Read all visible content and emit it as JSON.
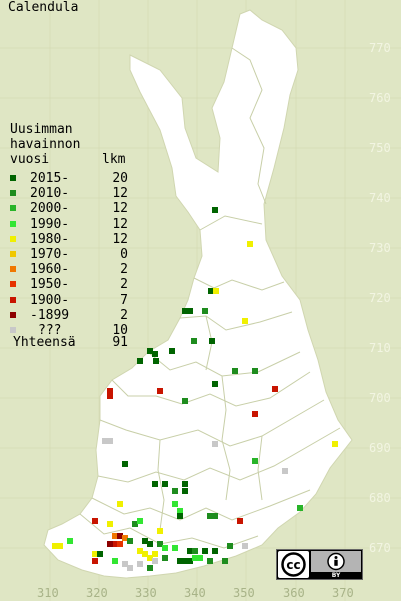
{
  "title": "Calendula",
  "legend": {
    "heading_line1": "Uusimman",
    "heading_line2": "havainnon",
    "heading_col1": "vuosi",
    "heading_col2": "lkm",
    "rows": [
      {
        "label": "2015-",
        "count": "20",
        "color": "#006400"
      },
      {
        "label": "2010-",
        "count": "12",
        "color": "#1e8c1e"
      },
      {
        "label": "2000-",
        "count": "12",
        "color": "#28b428"
      },
      {
        "label": "1990-",
        "count": "12",
        "color": "#32e632"
      },
      {
        "label": "1980-",
        "count": "12",
        "color": "#f0f000"
      },
      {
        "label": "1970-",
        "count": "0",
        "color": "#f0c800"
      },
      {
        "label": "1960-",
        "count": "2",
        "color": "#f07800"
      },
      {
        "label": "1950-",
        "count": "2",
        "color": "#e63200"
      },
      {
        "label": "1900-",
        "count": "7",
        "color": "#c81400"
      },
      {
        "label": "-1899",
        "count": "2",
        "color": "#8c0000"
      },
      {
        "label": "???",
        "count": "10",
        "color": "#c8c8c8"
      }
    ],
    "total_label": "Yhteensä",
    "total_count": "91"
  },
  "grid_y_labels": [
    "770",
    "760",
    "750",
    "740",
    "730",
    "720",
    "710",
    "700",
    "690",
    "680",
    "670"
  ],
  "grid_x_labels": [
    "310",
    "320",
    "330",
    "340",
    "350",
    "360",
    "370"
  ],
  "license": {
    "cc": "cc",
    "by": "BY",
    "badge_label": "Creative Commons BY"
  },
  "colors": {
    "background": "#dfe6c4",
    "land": "#ffffff",
    "grid": "#d8deb8",
    "border": "#c8cfa8"
  }
}
